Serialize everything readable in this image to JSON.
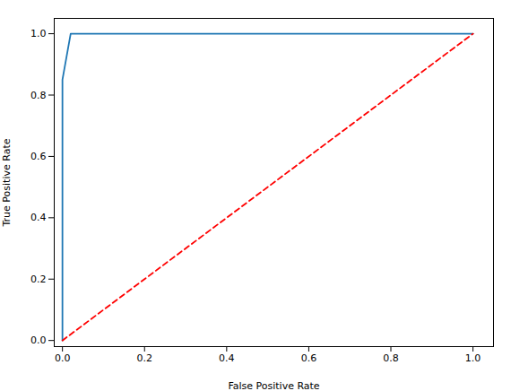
{
  "chart_data": {
    "type": "line",
    "xlabel": "False Positive Rate",
    "ylabel": "True Positive Rate",
    "series": [
      {
        "x": [
          0.0,
          0.0,
          0.0,
          0.02,
          0.1,
          1.0
        ],
        "values": [
          0.0,
          0.02,
          0.85,
          1.0,
          1.0,
          1.0
        ],
        "color": "#1f77b4",
        "line_style": "solid"
      },
      {
        "x": [
          0.0,
          1.0
        ],
        "values": [
          0.0,
          1.0
        ],
        "color": "red",
        "line_style": "dashed"
      }
    ],
    "xlim": [
      -0.02,
      1.05
    ],
    "ylim": [
      -0.02,
      1.05
    ],
    "xticks": [
      {
        "value": 0.0,
        "label": "0.0"
      },
      0.2,
      0.4,
      0.6,
      0.8,
      {
        "value": 1.0,
        "label": "1.0"
      }
    ],
    "yticks": [
      {
        "value": 0.0,
        "label": "0.0"
      },
      0.2,
      0.4,
      0.6,
      0.8,
      {
        "value": 1.0,
        "label": "1.0"
      }
    ],
    "grid": false
  }
}
